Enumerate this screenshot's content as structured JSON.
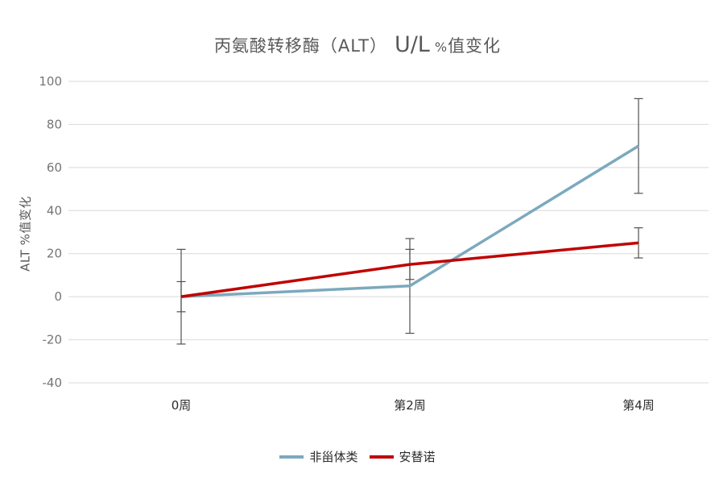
{
  "title": {
    "prefix": "丙氨酸转移酶（ALT）",
    "unit": "U/L",
    "percent": "%",
    "suffix": "值变化",
    "full": "丙氨酸转移酶（ALT）U/L %值变化",
    "color": "#595959"
  },
  "chart_data": {
    "type": "line",
    "title": "丙氨酸转移酶（ALT）U/L %值变化",
    "xlabel": "",
    "ylabel": "ALT %值变化",
    "categories": [
      "0周",
      "第2周",
      "第4周"
    ],
    "series": [
      {
        "name": "非甾体类",
        "color": "#7CA9BE",
        "values": [
          0,
          5,
          70
        ],
        "error_bar": 22
      },
      {
        "name": "安替诺",
        "color": "#C00000",
        "values": [
          0,
          15,
          25
        ],
        "error_bar": 7
      }
    ],
    "ylim": [
      -40,
      100
    ],
    "yticks": [
      100,
      80,
      60,
      40,
      20,
      0,
      -20,
      -40
    ],
    "grid": "horizontal-only",
    "legend_position": "bottom",
    "error_bars": true,
    "colors": {
      "gridline": "#D9D9D9",
      "error_bar": "#505050",
      "y_tick_label": "#757575",
      "x_tick_label": "#2B2B2B",
      "background": "#FFFFFF"
    }
  }
}
